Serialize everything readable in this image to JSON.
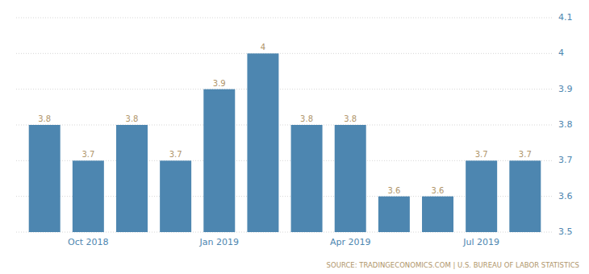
{
  "chart_data": {
    "type": "bar",
    "categories": [
      null,
      "Oct 2018",
      null,
      null,
      "Jan 2019",
      null,
      null,
      "Apr 2019",
      null,
      null,
      "Jul 2019",
      null
    ],
    "values": [
      3.8,
      3.7,
      3.8,
      3.7,
      3.9,
      4,
      3.8,
      3.8,
      3.6,
      3.6,
      3.7,
      3.7
    ],
    "color": "#4d86b0",
    "ylim": [
      3.5,
      4.1
    ],
    "yticks": [
      3.5,
      3.6,
      3.7,
      3.8,
      3.9,
      4,
      4.1
    ],
    "grid": true,
    "data_labels": true,
    "annotations": [
      "SOURCE: TRADINGECONOMICS.COM | U.S. BUREAU OF LABOR STATISTICS"
    ]
  }
}
